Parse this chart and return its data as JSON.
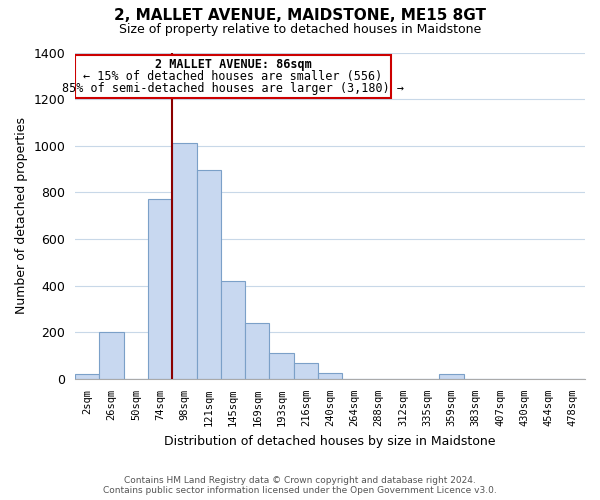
{
  "title": "2, MALLET AVENUE, MAIDSTONE, ME15 8GT",
  "subtitle": "Size of property relative to detached houses in Maidstone",
  "xlabel": "Distribution of detached houses by size in Maidstone",
  "ylabel": "Number of detached properties",
  "bar_labels": [
    "2sqm",
    "26sqm",
    "50sqm",
    "74sqm",
    "98sqm",
    "121sqm",
    "145sqm",
    "169sqm",
    "193sqm",
    "216sqm",
    "240sqm",
    "264sqm",
    "288sqm",
    "312sqm",
    "335sqm",
    "359sqm",
    "383sqm",
    "407sqm",
    "430sqm",
    "454sqm",
    "478sqm"
  ],
  "bar_heights": [
    20,
    200,
    0,
    770,
    1010,
    895,
    420,
    240,
    110,
    70,
    25,
    0,
    0,
    0,
    0,
    20,
    0,
    0,
    0,
    0,
    0
  ],
  "bar_color": "#c8d8f0",
  "bar_edge_color": "#7ba0c8",
  "ylim": [
    0,
    1400
  ],
  "yticks": [
    0,
    200,
    400,
    600,
    800,
    1000,
    1200,
    1400
  ],
  "property_line_label": "2 MALLET AVENUE: 86sqm",
  "annotation_line1": "← 15% of detached houses are smaller (556)",
  "annotation_line2": "85% of semi-detached houses are larger (3,180) →",
  "footer_line1": "Contains HM Land Registry data © Crown copyright and database right 2024.",
  "footer_line2": "Contains public sector information licensed under the Open Government Licence v3.0.",
  "background_color": "#ffffff",
  "grid_color": "#c8d8e8"
}
